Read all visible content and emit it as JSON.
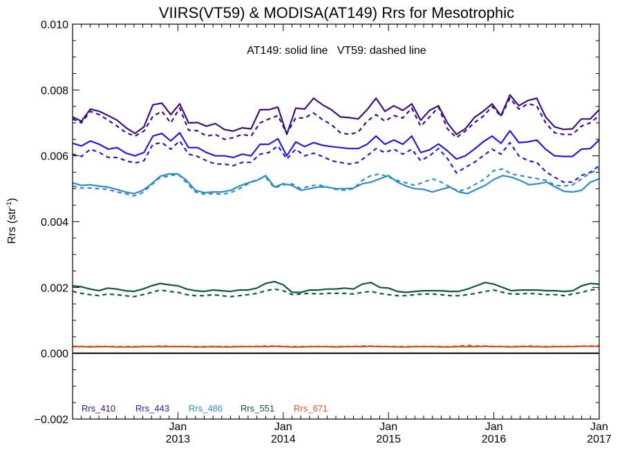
{
  "chart_data": {
    "type": "line",
    "title": "VIIRS(VT59) & MODISA(AT149)  Rrs for Mesotrophic",
    "annotation": "AT149: solid line   VT59: dashed line",
    "ylabel": "Rrs (str",
    "ylabel_sup": "-1",
    "ylabel_close": ")",
    "xlabel": "",
    "x_units": "month (2012-01 to 2017-01)",
    "x_range": [
      "2012-01",
      "2017-01"
    ],
    "ylim": [
      -0.002,
      0.01
    ],
    "yticks": [
      "−0.002",
      "0.000",
      "0.002",
      "0.004",
      "0.006",
      "0.008",
      "0.010"
    ],
    "xticks": [
      {
        "month": "Jan",
        "year": "2013",
        "date": "2013-01"
      },
      {
        "month": "Jan",
        "year": "2014",
        "date": "2014-01"
      },
      {
        "month": "Jan",
        "year": "2015",
        "date": "2015-01"
      },
      {
        "month": "Jan",
        "year": "2016",
        "date": "2016-01"
      },
      {
        "month": "Jan",
        "year": "2017",
        "date": "2017-01"
      }
    ],
    "zero_line": 0.0,
    "legend_position": "bottom-left",
    "series": [
      {
        "name": "Rrs_410",
        "color": "#3c0d82",
        "style": "solid",
        "sensor": "AT149",
        "values": [
          0.00718,
          0.00705,
          0.00742,
          0.00735,
          0.00722,
          0.00708,
          0.00685,
          0.00668,
          0.00688,
          0.00755,
          0.0076,
          0.00725,
          0.00758,
          0.007,
          0.00701,
          0.0069,
          0.00698,
          0.0068,
          0.00675,
          0.00685,
          0.00682,
          0.0074,
          0.0074,
          0.00748,
          0.00665,
          0.00745,
          0.00742,
          0.00775,
          0.00755,
          0.0074,
          0.00718,
          0.00716,
          0.00712,
          0.0074,
          0.00775,
          0.00735,
          0.00752,
          0.00738,
          0.00758,
          0.00708,
          0.00738,
          0.00752,
          0.007,
          0.00665,
          0.00682,
          0.00716,
          0.00735,
          0.00758,
          0.00722,
          0.00785,
          0.00752,
          0.00768,
          0.00775,
          0.00718,
          0.00688,
          0.0068,
          0.00682,
          0.00712,
          0.00712,
          0.0074
        ]
      },
      {
        "name": "Rrs_410",
        "color": "#3c0d82",
        "style": "dashed",
        "sensor": "VT59",
        "values": [
          0.00712,
          0.007,
          0.00735,
          0.00725,
          0.00708,
          0.0069,
          0.0067,
          0.0066,
          0.00675,
          0.0072,
          0.00735,
          0.007,
          0.00745,
          0.00678,
          0.00676,
          0.0066,
          0.00665,
          0.0065,
          0.00655,
          0.00665,
          0.0066,
          0.007,
          0.00712,
          0.00722,
          0.00668,
          0.00715,
          0.00715,
          0.0073,
          0.0071,
          0.00695,
          0.0067,
          0.00665,
          0.00672,
          0.00705,
          0.00725,
          0.00705,
          0.00722,
          0.00715,
          0.00745,
          0.0069,
          0.00718,
          0.00748,
          0.00682,
          0.00655,
          0.00675,
          0.007,
          0.0072,
          0.0075,
          0.0072,
          0.00775,
          0.00742,
          0.00758,
          0.00752,
          0.007,
          0.0067,
          0.00665,
          0.00665,
          0.0069,
          0.007,
          0.00722
        ]
      },
      {
        "name": "Rrs_443",
        "color": "#1e19dc",
        "style": "solid",
        "sensor": "AT149",
        "values": [
          0.00638,
          0.0063,
          0.00645,
          0.00635,
          0.0062,
          0.00625,
          0.00608,
          0.006,
          0.0061,
          0.0066,
          0.00668,
          0.00645,
          0.0067,
          0.00625,
          0.00625,
          0.0061,
          0.006,
          0.006,
          0.00595,
          0.00605,
          0.006,
          0.00635,
          0.00635,
          0.00652,
          0.006,
          0.00642,
          0.00628,
          0.0064,
          0.00632,
          0.00628,
          0.00625,
          0.00622,
          0.00622,
          0.00635,
          0.0066,
          0.00635,
          0.00648,
          0.00635,
          0.0066,
          0.0061,
          0.00618,
          0.00636,
          0.00615,
          0.0059,
          0.006,
          0.0062,
          0.00642,
          0.0066,
          0.00638,
          0.00676,
          0.0064,
          0.00642,
          0.00648,
          0.0062,
          0.006,
          0.00598,
          0.00598,
          0.0062,
          0.00622,
          0.00648
        ]
      },
      {
        "name": "Rrs_443",
        "color": "#1e19dc",
        "style": "dashed",
        "sensor": "VT59",
        "values": [
          0.00605,
          0.00598,
          0.0062,
          0.0061,
          0.00595,
          0.00595,
          0.00585,
          0.00578,
          0.00585,
          0.00635,
          0.0064,
          0.0062,
          0.00645,
          0.00605,
          0.00598,
          0.00585,
          0.00575,
          0.00575,
          0.0057,
          0.0058,
          0.0058,
          0.00605,
          0.0061,
          0.0063,
          0.0059,
          0.0062,
          0.006,
          0.00608,
          0.00598,
          0.00585,
          0.0058,
          0.00575,
          0.0058,
          0.006,
          0.00622,
          0.0061,
          0.0062,
          0.00605,
          0.0062,
          0.00585,
          0.006,
          0.00622,
          0.00592,
          0.00548,
          0.00565,
          0.0058,
          0.006,
          0.0062,
          0.00605,
          0.0064,
          0.006,
          0.00585,
          0.0058,
          0.00552,
          0.00535,
          0.0052,
          0.0052,
          0.0054,
          0.0055,
          0.0057
        ]
      },
      {
        "name": "Rrs_486",
        "color": "#2d8ac8",
        "style": "solid",
        "sensor": "AT149",
        "values": [
          0.00518,
          0.0051,
          0.00512,
          0.00508,
          0.00505,
          0.00498,
          0.0049,
          0.00485,
          0.00495,
          0.00515,
          0.00538,
          0.00545,
          0.00545,
          0.00525,
          0.00495,
          0.00488,
          0.0049,
          0.0049,
          0.00495,
          0.00508,
          0.00518,
          0.00525,
          0.0054,
          0.00505,
          0.00515,
          0.0051,
          0.00495,
          0.005,
          0.00505,
          0.00505,
          0.005,
          0.005,
          0.00502,
          0.00515,
          0.0052,
          0.0053,
          0.0054,
          0.0052,
          0.00508,
          0.005,
          0.00498,
          0.0049,
          0.00498,
          0.00505,
          0.0049,
          0.00485,
          0.00498,
          0.0051,
          0.00528,
          0.0054,
          0.00535,
          0.00525,
          0.00512,
          0.00515,
          0.0052,
          0.00505,
          0.00492,
          0.0049,
          0.00495,
          0.0052,
          0.0053
        ]
      },
      {
        "name": "Rrs_486",
        "color": "#2d8ac8",
        "style": "dashed",
        "sensor": "VT59",
        "values": [
          0.00508,
          0.00502,
          0.00502,
          0.005,
          0.00498,
          0.0049,
          0.00485,
          0.00478,
          0.00488,
          0.00512,
          0.00535,
          0.00538,
          0.00545,
          0.00518,
          0.0049,
          0.00483,
          0.00485,
          0.00483,
          0.00488,
          0.005,
          0.00515,
          0.00528,
          0.00535,
          0.00502,
          0.00512,
          0.00515,
          0.005,
          0.00508,
          0.00512,
          0.00505,
          0.00498,
          0.00495,
          0.005,
          0.00525,
          0.0054,
          0.00545,
          0.00535,
          0.00525,
          0.00518,
          0.0051,
          0.0052,
          0.0053,
          0.0052,
          0.00505,
          0.00492,
          0.005,
          0.00515,
          0.0053,
          0.00555,
          0.0056,
          0.00545,
          0.0054,
          0.00535,
          0.0053,
          0.00525,
          0.0051,
          0.00508,
          0.00512,
          0.0053,
          0.00548,
          0.0056
        ]
      },
      {
        "name": "Rrs_551",
        "color": "#0a5a2d",
        "style": "solid",
        "sensor": "AT149",
        "values": [
          0.00205,
          0.00202,
          0.00195,
          0.0019,
          0.00198,
          0.00195,
          0.0019,
          0.00188,
          0.00195,
          0.00205,
          0.00212,
          0.00208,
          0.00205,
          0.00195,
          0.0019,
          0.00188,
          0.00192,
          0.0019,
          0.00188,
          0.00192,
          0.00192,
          0.00198,
          0.00212,
          0.00218,
          0.00208,
          0.00185,
          0.00185,
          0.00192,
          0.00192,
          0.00195,
          0.00195,
          0.00198,
          0.00195,
          0.0021,
          0.00215,
          0.002,
          0.00198,
          0.00188,
          0.00185,
          0.00188,
          0.0019,
          0.0019,
          0.0019,
          0.00188,
          0.00188,
          0.00195,
          0.00205,
          0.00215,
          0.0021,
          0.002,
          0.0019,
          0.00192,
          0.00192,
          0.00192,
          0.0019,
          0.0019,
          0.00188,
          0.0019,
          0.00205,
          0.00212,
          0.0021
        ]
      },
      {
        "name": "Rrs_551",
        "color": "#0a5a2d",
        "style": "dashed",
        "sensor": "VT59",
        "values": [
          0.00188,
          0.00182,
          0.00178,
          0.00175,
          0.0018,
          0.00178,
          0.00175,
          0.00172,
          0.00178,
          0.00185,
          0.00192,
          0.00188,
          0.00185,
          0.00178,
          0.00175,
          0.00175,
          0.00178,
          0.00175,
          0.00172,
          0.00175,
          0.00178,
          0.00182,
          0.0019,
          0.00195,
          0.0019,
          0.00178,
          0.0018,
          0.00182,
          0.0018,
          0.00182,
          0.00182,
          0.00182,
          0.0018,
          0.00185,
          0.00188,
          0.00182,
          0.00178,
          0.00175,
          0.00175,
          0.00178,
          0.0018,
          0.0018,
          0.00178,
          0.00175,
          0.00175,
          0.00178,
          0.00182,
          0.00188,
          0.00192,
          0.00185,
          0.0018,
          0.0018,
          0.00182,
          0.0018,
          0.00178,
          0.00178,
          0.00175,
          0.0018,
          0.00185,
          0.00192,
          0.00195
        ]
      },
      {
        "name": "Rrs_671",
        "color": "#e0501e",
        "style": "solid",
        "sensor": "AT149",
        "values": [
          0.0002,
          0.0002,
          0.00019,
          0.0002,
          0.0002,
          0.00019,
          0.00019,
          0.00019,
          0.0002,
          0.0002,
          0.0002,
          0.0002,
          0.0002,
          0.0002,
          0.00019,
          0.00019,
          0.0002,
          0.00019,
          0.00019,
          0.0002,
          0.0002,
          0.0002,
          0.0002,
          0.00021,
          0.0002,
          0.00019,
          0.00019,
          0.0002,
          0.0002,
          0.0002,
          0.00019,
          0.0002,
          0.0002,
          0.0002,
          0.00021,
          0.0002,
          0.0002,
          0.00019,
          0.00019,
          0.0002,
          0.0002,
          0.0002,
          0.00019,
          0.00019,
          0.0002,
          0.0002,
          0.0002,
          0.00021,
          0.0002,
          0.0002,
          0.00019,
          0.0002,
          0.0002,
          0.0002,
          0.00019,
          0.0002,
          0.0002,
          0.0002,
          0.00021,
          0.00021,
          0.00021
        ]
      },
      {
        "name": "Rrs_671",
        "color": "#e0501e",
        "style": "dashed",
        "sensor": "VT59",
        "values": [
          0.00021,
          0.00021,
          0.0002,
          0.00021,
          0.00021,
          0.0002,
          0.0002,
          0.0002,
          0.00021,
          0.00021,
          0.00022,
          0.00021,
          0.00021,
          0.00021,
          0.0002,
          0.0002,
          0.00021,
          0.0002,
          0.0002,
          0.00021,
          0.00021,
          0.00021,
          0.00022,
          0.00022,
          0.00021,
          0.0002,
          0.0002,
          0.00021,
          0.00021,
          0.00021,
          0.0002,
          0.00021,
          0.00021,
          0.00022,
          0.00022,
          0.00021,
          0.00021,
          0.0002,
          0.0002,
          0.00021,
          0.00021,
          0.00021,
          0.0002,
          0.0002,
          0.00022,
          0.00024,
          0.00022,
          0.00022,
          0.00021,
          0.00021,
          0.0002,
          0.00021,
          0.00022,
          0.00021,
          0.0002,
          0.00021,
          0.00021,
          0.00021,
          0.00022,
          0.00022,
          0.00023
        ]
      }
    ],
    "legend": [
      {
        "label": "Rrs_410",
        "color": "#3c0d82"
      },
      {
        "label": "Rrs_443",
        "color": "#1e19dc"
      },
      {
        "label": "Rrs_486",
        "color": "#2d8ac8"
      },
      {
        "label": "Rrs_551",
        "color": "#0a5a2d"
      },
      {
        "label": "Rrs_671",
        "color": "#e0501e"
      }
    ]
  }
}
